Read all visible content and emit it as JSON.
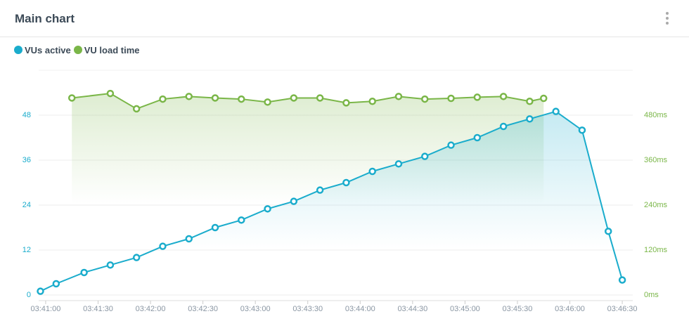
{
  "header": {
    "title": "Main chart"
  },
  "chart_data": {
    "type": "line",
    "series": [
      {
        "name": "VUs active",
        "color": "#1aaccc",
        "axis": "y",
        "x": [
          "03:40:57",
          "03:41:06",
          "03:41:22",
          "03:41:37",
          "03:41:52",
          "03:42:07",
          "03:42:22",
          "03:42:37",
          "03:42:52",
          "03:43:07",
          "03:43:22",
          "03:43:37",
          "03:43:52",
          "03:44:07",
          "03:44:22",
          "03:44:37",
          "03:44:52",
          "03:45:07",
          "03:45:22",
          "03:45:37",
          "03:45:52",
          "03:46:07",
          "03:46:22",
          "03:46:30"
        ],
        "values": [
          1,
          3,
          6,
          8,
          10,
          13,
          15,
          18,
          20,
          23,
          25,
          28,
          30,
          33,
          35,
          37,
          40,
          42,
          45,
          47,
          49,
          44,
          17,
          4
        ]
      },
      {
        "name": "VU load time",
        "color": "#7ab648",
        "axis": "y2",
        "x": [
          "03:41:15",
          "03:41:37",
          "03:41:52",
          "03:42:07",
          "03:42:22",
          "03:42:37",
          "03:42:52",
          "03:43:07",
          "03:43:22",
          "03:43:37",
          "03:43:52",
          "03:44:07",
          "03:44:22",
          "03:44:37",
          "03:44:52",
          "03:45:07",
          "03:45:22",
          "03:45:37",
          "03:45:45"
        ],
        "values": [
          526,
          538,
          497,
          523,
          530,
          526,
          523,
          515,
          526,
          526,
          513,
          517,
          530,
          523,
          525,
          528,
          530,
          517,
          525
        ]
      }
    ],
    "xlim": [
      "03:40:56",
      "03:46:36"
    ],
    "xticks": [
      "03:41:00",
      "03:41:30",
      "03:42:00",
      "03:42:30",
      "03:43:00",
      "03:43:30",
      "03:44:00",
      "03:44:30",
      "03:45:00",
      "03:45:30",
      "03:46:00",
      "03:46:30"
    ],
    "ylim": [
      0,
      60
    ],
    "yticks": [
      0,
      12,
      24,
      36,
      48
    ],
    "y2lim": [
      0,
      600
    ],
    "y2ticks": [
      {
        "value": 0,
        "label": "0ms"
      },
      {
        "value": 120,
        "label": "120ms"
      },
      {
        "value": 240,
        "label": "240ms"
      },
      {
        "value": 360,
        "label": "360ms"
      },
      {
        "value": 480,
        "label": "480ms"
      }
    ],
    "grid": true
  }
}
